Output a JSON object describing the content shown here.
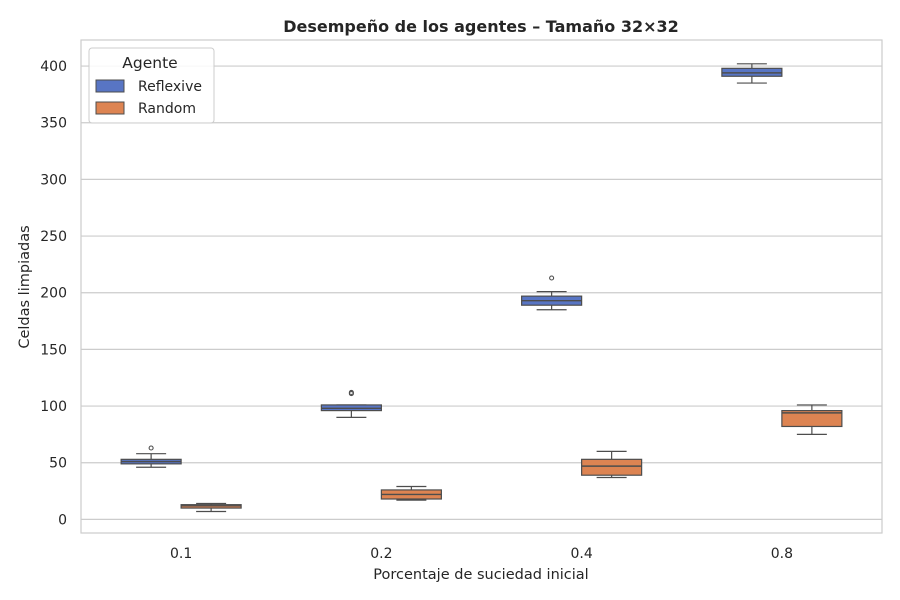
{
  "chart_data": {
    "type": "box",
    "title": "Desempeño de los agentes – Tamaño 32×32",
    "xlabel": "Porcentaje de suciedad inicial",
    "ylabel": "Celdas limpiadas",
    "categories": [
      "0.1",
      "0.2",
      "0.4",
      "0.8"
    ],
    "ylim": [
      -12,
      423
    ],
    "yticks": [
      0,
      50,
      100,
      150,
      200,
      250,
      300,
      350,
      400
    ],
    "grid": true,
    "legend": {
      "title": "Agente",
      "position": "top-left"
    },
    "series": [
      {
        "name": "Reflexive",
        "color": "#5875c4",
        "boxes": [
          {
            "whisker_low": 46,
            "q1": 49,
            "median": 51,
            "q3": 53,
            "whisker_high": 58,
            "outliers": [
              63
            ]
          },
          {
            "whisker_low": 90,
            "q1": 96,
            "median": 98,
            "q3": 101,
            "whisker_high": 101,
            "outliers": [
              111,
              112
            ]
          },
          {
            "whisker_low": 185,
            "q1": 189,
            "median": 193,
            "q3": 197,
            "whisker_high": 201,
            "outliers": [
              213
            ]
          },
          {
            "whisker_low": 385,
            "q1": 391,
            "median": 394,
            "q3": 398,
            "whisker_high": 402,
            "outliers": []
          }
        ]
      },
      {
        "name": "Random",
        "color": "#dd8452",
        "boxes": [
          {
            "whisker_low": 7,
            "q1": 10,
            "median": 12,
            "q3": 13,
            "whisker_high": 14,
            "outliers": []
          },
          {
            "whisker_low": 17,
            "q1": 18,
            "median": 22,
            "q3": 26,
            "whisker_high": 29,
            "outliers": []
          },
          {
            "whisker_low": 37,
            "q1": 39,
            "median": 47,
            "q3": 53,
            "whisker_high": 60,
            "outliers": []
          },
          {
            "whisker_low": 75,
            "q1": 82,
            "median": 94,
            "q3": 96,
            "whisker_high": 101,
            "outliers": []
          }
        ]
      }
    ]
  }
}
